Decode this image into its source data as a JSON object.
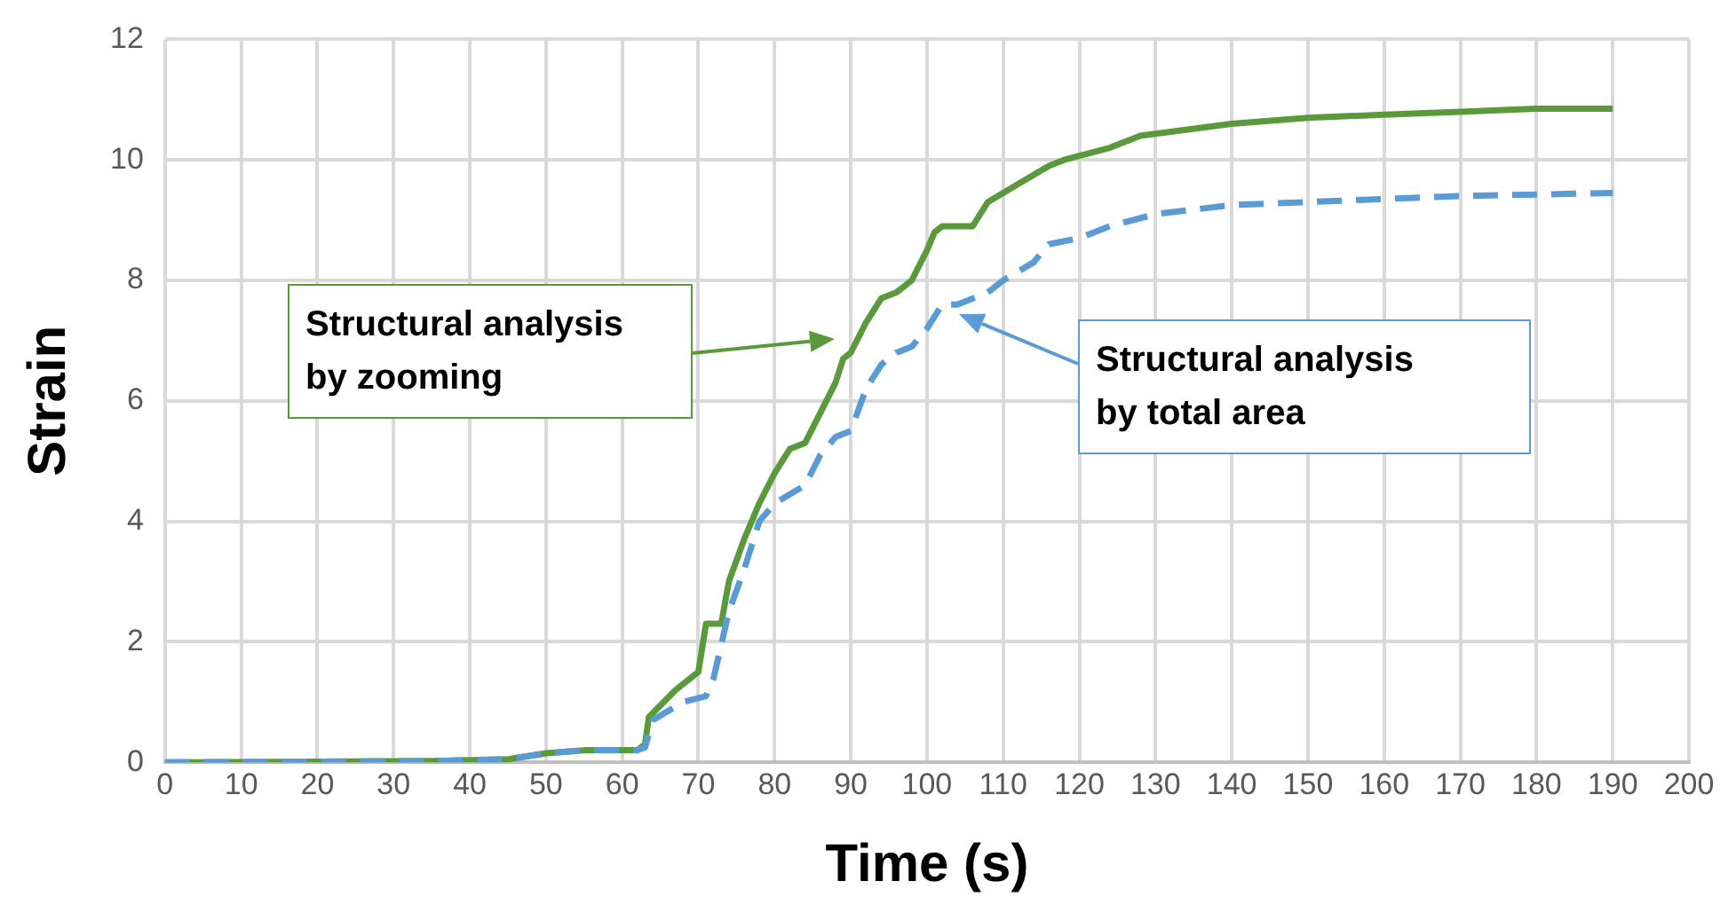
{
  "chart_data": {
    "type": "line",
    "xlabel": "Time (s)",
    "ylabel": "Strain",
    "xlim": [
      0,
      200
    ],
    "xticks": [
      0,
      10,
      20,
      30,
      40,
      50,
      60,
      70,
      80,
      90,
      100,
      110,
      120,
      130,
      140,
      150,
      160,
      170,
      180,
      190,
      200
    ],
    "ylim": [
      0,
      12
    ],
    "yticks": [
      0,
      2,
      4,
      6,
      8,
      10,
      12
    ],
    "grid": true,
    "marker": "none",
    "series": [
      {
        "color": "#5b9a3c",
        "line_style": "solid",
        "x": [
          0,
          35,
          45,
          50,
          55,
          62,
          63,
          63.5,
          67,
          70,
          71,
          73,
          74,
          76,
          78,
          80,
          82,
          84,
          86,
          88,
          89,
          90,
          92,
          94,
          96,
          98,
          100,
          101,
          102,
          106,
          108,
          112,
          116,
          118,
          124,
          128,
          134,
          140,
          150,
          160,
          170,
          180,
          190
        ],
        "values": [
          0,
          0.02,
          0.05,
          0.15,
          0.2,
          0.2,
          0.3,
          0.75,
          1.2,
          1.5,
          2.3,
          2.3,
          3.0,
          3.7,
          4.3,
          4.8,
          5.2,
          5.3,
          5.8,
          6.3,
          6.7,
          6.8,
          7.3,
          7.7,
          7.8,
          8.0,
          8.5,
          8.8,
          8.9,
          8.9,
          9.3,
          9.6,
          9.9,
          10.0,
          10.2,
          10.4,
          10.5,
          10.6,
          10.7,
          10.75,
          10.8,
          10.85,
          10.85
        ]
      },
      {
        "color": "#5b9bd5",
        "line_style": "dashed",
        "x": [
          0,
          35,
          45,
          50,
          55,
          62,
          63,
          64,
          68,
          71,
          72,
          74,
          76,
          78,
          80,
          84,
          86,
          88,
          90,
          92,
          94,
          96,
          98,
          100,
          102,
          104,
          108,
          110,
          114,
          116,
          120,
          124,
          130,
          140,
          150,
          160,
          170,
          190
        ],
        "values": [
          0,
          0.02,
          0.05,
          0.15,
          0.2,
          0.2,
          0.25,
          0.7,
          1.0,
          1.1,
          1.4,
          2.5,
          3.2,
          4.0,
          4.3,
          4.6,
          5.1,
          5.4,
          5.5,
          6.2,
          6.6,
          6.8,
          6.9,
          7.2,
          7.6,
          7.6,
          7.8,
          8.0,
          8.3,
          8.6,
          8.7,
          8.9,
          9.1,
          9.25,
          9.3,
          9.35,
          9.4,
          9.45
        ]
      }
    ],
    "annotations": [
      "Structural analysis\nby zooming",
      "Structural analysis\nby total area"
    ]
  }
}
